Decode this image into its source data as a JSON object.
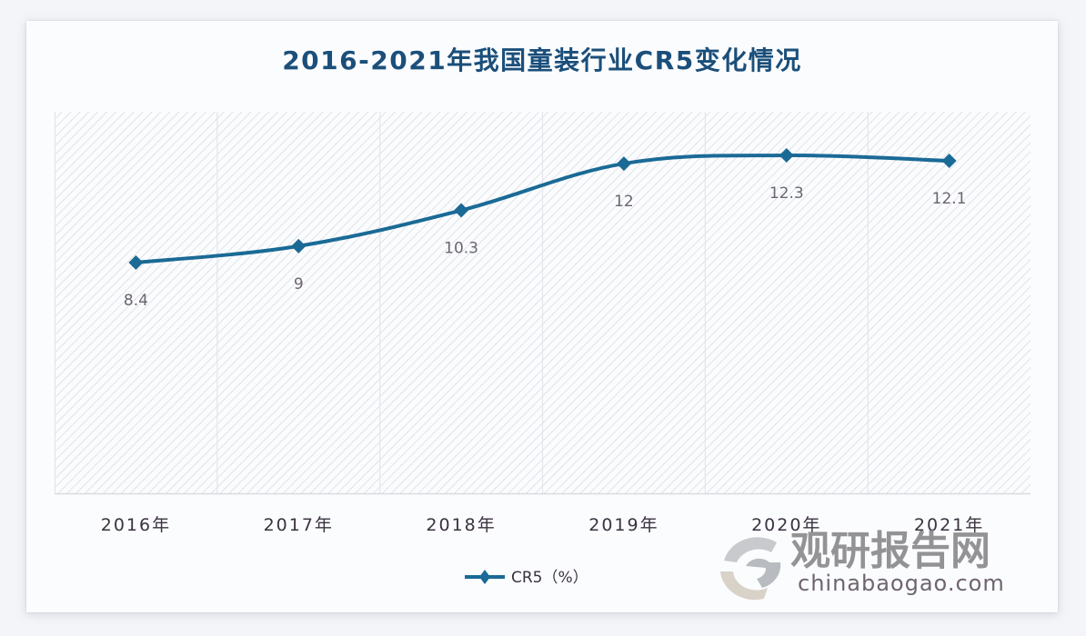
{
  "title": "2016-2021年我国童装行业CR5变化情况",
  "legend": {
    "label": "CR5（%）"
  },
  "watermark": {
    "cn": "观研报告网",
    "en": "chinabaogao.com"
  },
  "colors": {
    "series": "#1a6a96",
    "title": "#1b4f7a",
    "hatch": "#d4d6dc",
    "grid": "#e2e3e8"
  },
  "chart_data": {
    "type": "line",
    "title": "2016-2021年我国童装行业CR5变化情况",
    "xlabel": "",
    "ylabel": "",
    "categories": [
      "2016年",
      "2017年",
      "2018年",
      "2019年",
      "2020年",
      "2021年"
    ],
    "series": [
      {
        "name": "CR5（%）",
        "values": [
          8.4,
          9,
          10.3,
          12,
          12.3,
          12.1
        ],
        "labels": [
          "8.4",
          "9",
          "10.3",
          "12",
          "12.3",
          "12.1"
        ]
      }
    ],
    "grid": "vertical category separators, hatched plot background",
    "legend_position": "bottom",
    "smooth": true,
    "marker": "diamond"
  }
}
